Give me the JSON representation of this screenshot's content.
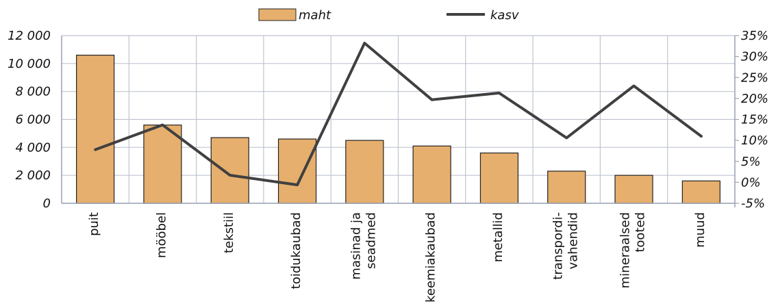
{
  "chart_data": {
    "type": "bar",
    "categories": [
      [
        "puit"
      ],
      [
        "mööbel"
      ],
      [
        "tekstiil"
      ],
      [
        "toidukaubad"
      ],
      [
        "masinad ja",
        "seadmed"
      ],
      [
        "keemiakaubad"
      ],
      [
        "metallid"
      ],
      [
        "transpordi-",
        "vahendid"
      ],
      [
        "mineraalsed",
        "tooted"
      ],
      [
        "muud"
      ]
    ],
    "series": [
      {
        "name": "maht",
        "type": "bar",
        "axis": "left",
        "values": [
          10600,
          5600,
          4700,
          4600,
          4500,
          4100,
          3600,
          2300,
          2000,
          1600
        ]
      },
      {
        "name": "kasv",
        "type": "line",
        "axis": "right",
        "values": [
          7.8,
          13.7,
          1.7,
          -0.6,
          33.2,
          19.7,
          21.3,
          10.6,
          23.0,
          11.0
        ]
      }
    ],
    "y_left": {
      "min": 0,
      "max": 12000,
      "step": 2000,
      "tick_labels": [
        "0",
        "2 000",
        "4 000",
        "6 000",
        "8 000",
        "10 000",
        "12 000"
      ]
    },
    "y_right": {
      "min": -5,
      "max": 35,
      "step": 5,
      "tick_labels": [
        "-5%",
        "0%",
        "5%",
        "10%",
        "15%",
        "20%",
        "25%",
        "30%",
        "35%"
      ]
    },
    "grid": true,
    "legend_position": "top-center",
    "colors": {
      "bar_fill": "#E6AF6E",
      "bar_stroke": "#222222",
      "line": "#404040",
      "grid": "#BFC4D0",
      "axis": "#9AA3B5"
    }
  }
}
